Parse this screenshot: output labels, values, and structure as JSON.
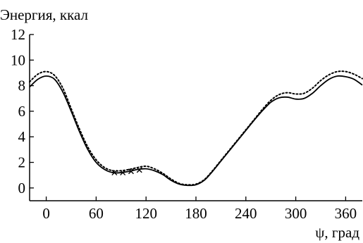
{
  "chart_data": {
    "type": "line",
    "title": "",
    "ylabel": "Энергия, ккал",
    "xlabel": "ψ, град",
    "xlim": [
      -20,
      380
    ],
    "ylim": [
      -1,
      12
    ],
    "x_ticks": [
      0,
      60,
      120,
      180,
      240,
      300,
      360
    ],
    "x_tick_labels": [
      "0",
      "60",
      "120",
      "180",
      "240",
      "300",
      "360"
    ],
    "y_ticks": [
      0,
      2,
      4,
      6,
      8,
      10,
      12
    ],
    "y_tick_labels": [
      "0",
      "2",
      "4",
      "6",
      "8",
      "10",
      "12"
    ],
    "grid": false,
    "legend": "none",
    "series": [
      {
        "style": "solid",
        "color": "#000000",
        "x": [
          -20,
          -10,
          0,
          10,
          20,
          30,
          40,
          50,
          60,
          70,
          80,
          90,
          100,
          110,
          120,
          130,
          140,
          150,
          160,
          170,
          180,
          190,
          200,
          210,
          220,
          230,
          240,
          250,
          260,
          270,
          280,
          290,
          300,
          310,
          320,
          330,
          340,
          350,
          360,
          370,
          380
        ],
        "y": [
          7.9,
          8.5,
          8.75,
          8.5,
          7.5,
          6.0,
          4.4,
          3.0,
          2.0,
          1.45,
          1.2,
          1.2,
          1.3,
          1.45,
          1.5,
          1.35,
          1.05,
          0.6,
          0.3,
          0.2,
          0.25,
          0.6,
          1.3,
          2.1,
          2.9,
          3.7,
          4.5,
          5.3,
          6.05,
          6.7,
          7.05,
          7.1,
          6.95,
          7.0,
          7.4,
          8.0,
          8.5,
          8.75,
          8.7,
          8.5,
          8.05
        ]
      },
      {
        "style": "dotted",
        "color": "#000000",
        "x": [
          -20,
          -10,
          0,
          10,
          20,
          30,
          40,
          50,
          60,
          70,
          80,
          90,
          100,
          110,
          120,
          130,
          140,
          150,
          160,
          170,
          180,
          190,
          200,
          210,
          220,
          230,
          240,
          250,
          260,
          270,
          280,
          290,
          300,
          310,
          320,
          330,
          340,
          350,
          360,
          370,
          380
        ],
        "y": [
          8.3,
          8.9,
          9.1,
          8.8,
          7.8,
          6.2,
          4.6,
          3.2,
          2.2,
          1.6,
          1.35,
          1.35,
          1.45,
          1.6,
          1.7,
          1.5,
          1.15,
          0.7,
          0.35,
          0.25,
          0.3,
          0.65,
          1.35,
          2.15,
          2.95,
          3.75,
          4.55,
          5.35,
          6.15,
          6.85,
          7.3,
          7.45,
          7.35,
          7.4,
          7.8,
          8.4,
          8.85,
          9.1,
          9.1,
          8.9,
          8.55
        ]
      }
    ],
    "markers": {
      "symbol": "×",
      "x": [
        82,
        92,
        102,
        112
      ],
      "y": [
        1.2,
        1.2,
        1.3,
        1.4
      ]
    }
  }
}
